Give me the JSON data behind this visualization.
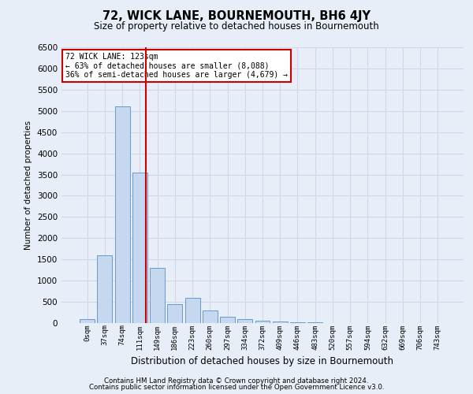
{
  "title": "72, WICK LANE, BOURNEMOUTH, BH6 4JY",
  "subtitle": "Size of property relative to detached houses in Bournemouth",
  "xlabel": "Distribution of detached houses by size in Bournemouth",
  "ylabel": "Number of detached properties",
  "footer1": "Contains HM Land Registry data © Crown copyright and database right 2024.",
  "footer2": "Contains public sector information licensed under the Open Government Licence v3.0.",
  "bar_labels": [
    "0sqm",
    "37sqm",
    "74sqm",
    "111sqm",
    "149sqm",
    "186sqm",
    "223sqm",
    "260sqm",
    "297sqm",
    "334sqm",
    "372sqm",
    "409sqm",
    "446sqm",
    "483sqm",
    "520sqm",
    "557sqm",
    "594sqm",
    "632sqm",
    "669sqm",
    "706sqm",
    "743sqm"
  ],
  "bar_values": [
    100,
    1600,
    5100,
    3550,
    1300,
    450,
    600,
    300,
    150,
    100,
    50,
    30,
    20,
    10,
    5,
    3,
    2,
    2,
    1,
    1,
    1
  ],
  "bar_color": "#c5d8f0",
  "bar_edgecolor": "#6699cc",
  "grid_color": "#d0d8e8",
  "background_color": "#e8eef8",
  "vline_color": "#cc0000",
  "vline_x": 3.33,
  "annotation_text": "72 WICK LANE: 123sqm\n← 63% of detached houses are smaller (8,088)\n36% of semi-detached houses are larger (4,679) →",
  "annotation_box_color": "#ffffff",
  "annotation_box_edgecolor": "#cc0000",
  "ylim": [
    0,
    6500
  ],
  "yticks": [
    0,
    500,
    1000,
    1500,
    2000,
    2500,
    3000,
    3500,
    4000,
    4500,
    5000,
    5500,
    6000,
    6500
  ]
}
